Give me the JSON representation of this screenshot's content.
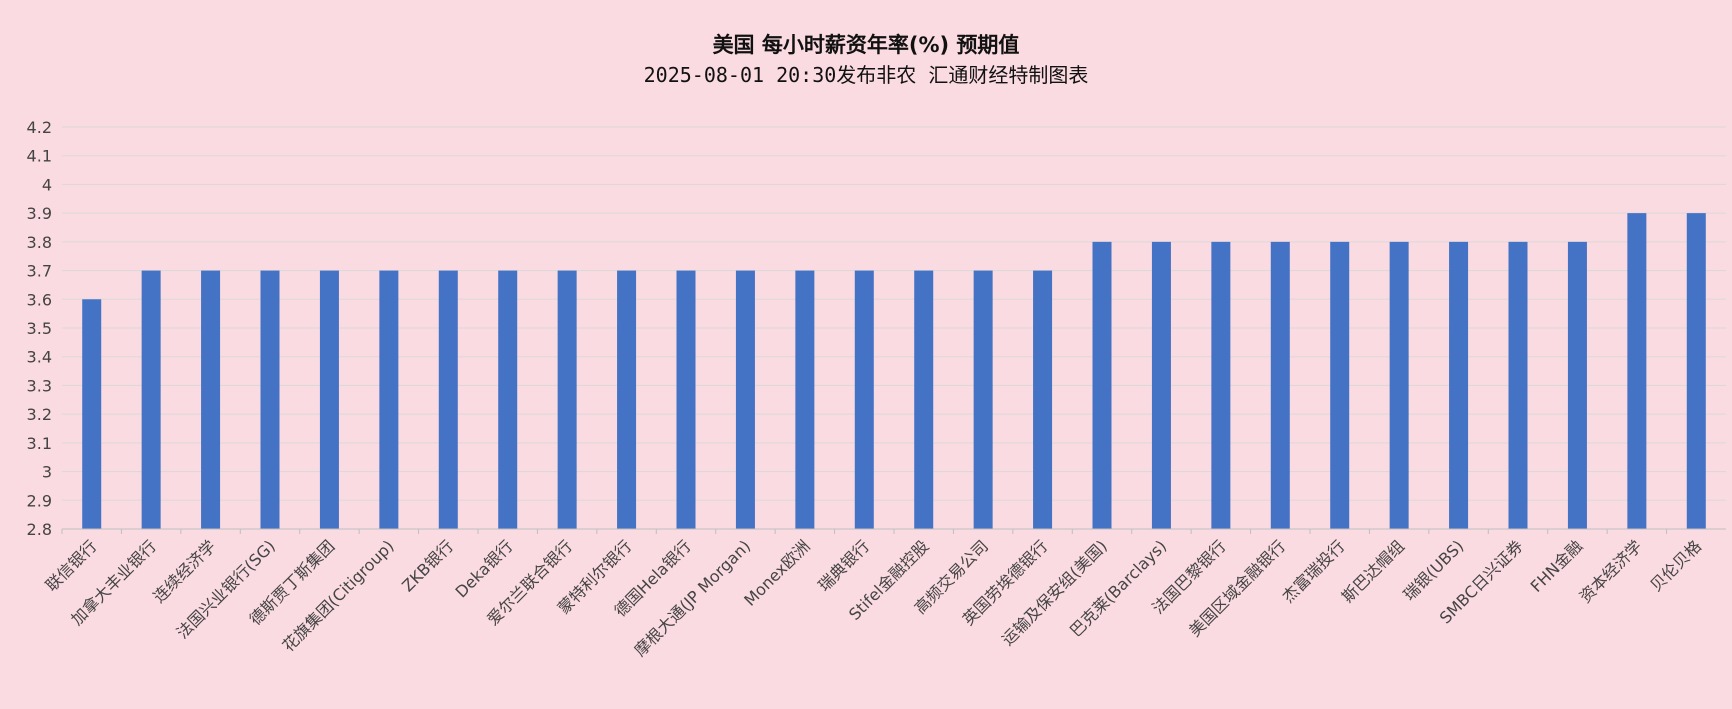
{
  "chart_data": {
    "type": "bar",
    "title": "美国 每小时薪资年率(%) 预期值",
    "subtitle": "2025-08-01 20:30发布非农 汇通财经特制图表",
    "xlabel": "",
    "ylabel": "",
    "ylim": [
      2.8,
      4.2
    ],
    "yticks": [
      "2.8",
      "2.9",
      "3",
      "3.1",
      "3.2",
      "3.3",
      "3.4",
      "3.5",
      "3.6",
      "3.7",
      "3.8",
      "3.9",
      "4",
      "4.1",
      "4.2"
    ],
    "grid": true,
    "legend": "none",
    "bar_color": "#4472c4",
    "background_color": "#fadbe1",
    "categories": [
      "联信银行",
      "加拿大丰业银行",
      "连续经济学",
      "法国兴业银行(SG)",
      "德斯贾丁斯集团",
      "花旗集团(Citigroup)",
      "ZKB银行",
      "Deka银行",
      "爱尔兰联合银行",
      "蒙特利尔银行",
      "德国Hela银行",
      "摩根大通(JP Morgan)",
      "Monex欧洲",
      "瑞典银行",
      "Stifel金融控股",
      "高频交易公司",
      "英国劳埃德银行",
      "运输及保安组(美国)",
      "巴克莱(Barclays)",
      "法国巴黎银行",
      "美国区域金融银行",
      "杰富瑞投行",
      "斯巴达帽组",
      "瑞银(UBS)",
      "SMBC日兴证券",
      "FHN金融",
      "资本经济学",
      "贝伦贝格"
    ],
    "values": [
      3.6,
      3.7,
      3.7,
      3.7,
      3.7,
      3.7,
      3.7,
      3.7,
      3.7,
      3.7,
      3.7,
      3.7,
      3.7,
      3.7,
      3.7,
      3.7,
      3.7,
      3.8,
      3.8,
      3.8,
      3.8,
      3.8,
      3.8,
      3.8,
      3.8,
      3.8,
      3.9,
      3.9
    ]
  }
}
